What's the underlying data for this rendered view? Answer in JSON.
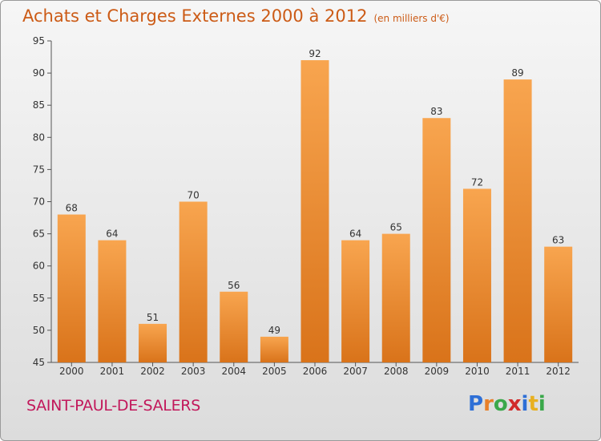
{
  "title": "Achats et Charges Externes 2000 à 2012",
  "unit": "(en milliers d'€)",
  "commune": "SAINT-PAUL-DE-SALERS",
  "logo": {
    "letters": [
      "P",
      "r",
      "o",
      "x",
      "i",
      "t",
      "i"
    ],
    "colors": [
      "#2e6fd6",
      "#e8802a",
      "#3aa84a",
      "#d12a2a",
      "#2e6fd6",
      "#e8b020",
      "#3aa84a"
    ]
  },
  "colors": {
    "bar_light": "#f8a54f",
    "bar_dark": "#d9731a",
    "title": "#cc5b16",
    "commune": "#c2185b"
  },
  "chart_data": {
    "type": "bar",
    "categories": [
      "2000",
      "2001",
      "2002",
      "2003",
      "2004",
      "2005",
      "2006",
      "2007",
      "2008",
      "2009",
      "2010",
      "2011",
      "2012"
    ],
    "values": [
      68,
      64,
      51,
      70,
      56,
      49,
      92,
      64,
      65,
      83,
      72,
      89,
      63
    ],
    "ylim": [
      45,
      95
    ],
    "yticks": [
      45,
      50,
      55,
      60,
      65,
      70,
      75,
      80,
      85,
      90,
      95
    ],
    "grid": false
  }
}
